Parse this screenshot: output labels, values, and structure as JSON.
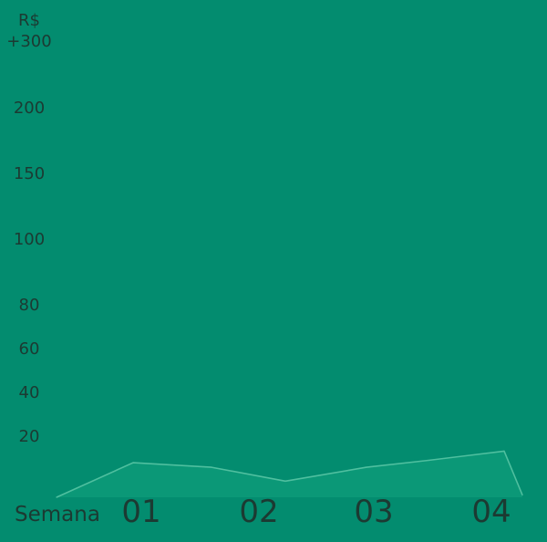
{
  "chart_data": {
    "type": "area",
    "title": "",
    "y_unit_label": "R$",
    "y_tick_labels": [
      "+300",
      "200",
      "150",
      "100",
      "80",
      "60",
      "40",
      "20"
    ],
    "xlabel": "Semana",
    "x_tick_labels": [
      "01",
      "02",
      "03",
      "04"
    ],
    "series": [
      {
        "x": [
          "",
          "01",
          "",
          "02",
          "03",
          "",
          "04",
          ""
        ],
        "values": [
          0,
          15,
          13,
          7,
          13,
          16,
          20,
          1
        ]
      }
    ],
    "colors": {
      "background": "#038C6F",
      "area_fill": "#0B9877",
      "line": "#4FBF9F",
      "text": "#1C3A32"
    }
  }
}
